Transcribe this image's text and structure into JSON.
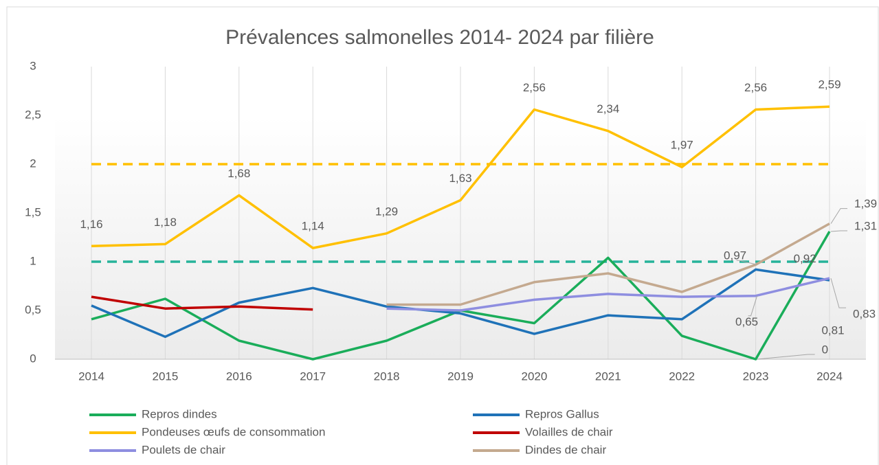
{
  "chart_data": {
    "type": "line",
    "title": "Prévalences salmonelles 2014- 2024 par filière",
    "categories": [
      "2014",
      "2015",
      "2016",
      "2017",
      "2018",
      "2019",
      "2020",
      "2021",
      "2022",
      "2023",
      "2024"
    ],
    "ylim": [
      0,
      3
    ],
    "yticks": [
      0,
      {
        "value": 0.5,
        "label": "0,5"
      },
      1,
      {
        "value": 1.5,
        "label": "1,5"
      },
      2,
      {
        "value": 2.5,
        "label": "2,5"
      },
      3
    ],
    "grid": "vertical",
    "legend": "bottom",
    "reference_lines": [
      {
        "value": 2,
        "color": "#ffc000"
      },
      {
        "value": 1,
        "color": "#26b39a"
      }
    ],
    "series": [
      {
        "name": "Repros dindes",
        "color": "#1aad5a",
        "values": [
          0.41,
          0.62,
          0.19,
          0,
          0.19,
          0.5,
          0.37,
          1.04,
          0.24,
          0,
          1.31
        ],
        "value_labels": [
          null,
          null,
          null,
          null,
          null,
          null,
          null,
          null,
          null,
          "0",
          "1,31"
        ]
      },
      {
        "name": "Repros Gallus",
        "color": "#1f72b8",
        "values": [
          0.55,
          0.23,
          0.58,
          0.73,
          0.54,
          0.47,
          0.26,
          0.45,
          0.41,
          0.92,
          0.81
        ],
        "value_labels": [
          null,
          null,
          null,
          null,
          null,
          null,
          null,
          null,
          null,
          "0,92",
          "0,81"
        ]
      },
      {
        "name": "Pondeuses œufs de consommation",
        "color": "#ffc000",
        "values": [
          1.16,
          1.18,
          1.68,
          1.14,
          1.29,
          1.63,
          2.56,
          2.34,
          1.97,
          2.56,
          2.59
        ],
        "value_labels": [
          "1,16",
          "1,18",
          "1,68",
          "1,14",
          "1,29",
          "1,63",
          "2,56",
          "2,34",
          "1,97",
          "2,56",
          "2,59"
        ]
      },
      {
        "name": "Volailles de chair",
        "color": "#c00000",
        "values": [
          0.64,
          0.52,
          0.54,
          0.51,
          null,
          null,
          null,
          null,
          null,
          null,
          null
        ]
      },
      {
        "name": "Poulets de chair",
        "color": "#8e8ee0",
        "values": [
          null,
          null,
          null,
          null,
          0.52,
          0.5,
          0.61,
          0.67,
          0.64,
          0.65,
          0.83
        ],
        "value_labels": [
          null,
          null,
          null,
          null,
          null,
          null,
          null,
          null,
          null,
          "0,65",
          "0,83"
        ]
      },
      {
        "name": "Dindes de chair",
        "color": "#c4a98f",
        "values": [
          null,
          null,
          null,
          null,
          0.56,
          0.56,
          0.79,
          0.88,
          0.69,
          0.97,
          1.39
        ],
        "value_labels": [
          null,
          null,
          null,
          null,
          null,
          null,
          null,
          null,
          null,
          "0,97",
          "1,39"
        ]
      }
    ]
  }
}
